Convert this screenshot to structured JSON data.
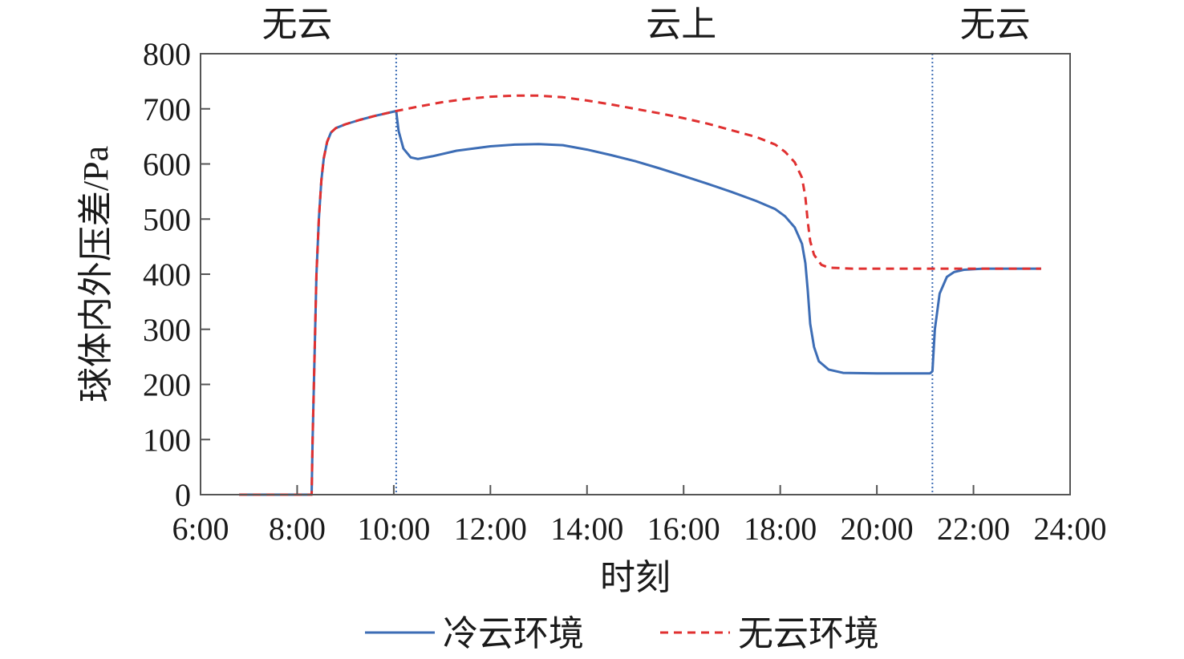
{
  "chart_data": {
    "type": "line",
    "xlabel": "时刻",
    "ylabel": "球体内外压差/Pa",
    "xlim": [
      6,
      24
    ],
    "ylim": [
      0,
      800
    ],
    "x_ticks": [
      {
        "value": 6,
        "label": "6:00"
      },
      {
        "value": 8,
        "label": "8:00"
      },
      {
        "value": 10,
        "label": "10:00"
      },
      {
        "value": 12,
        "label": "12:00"
      },
      {
        "value": 14,
        "label": "14:00"
      },
      {
        "value": 16,
        "label": "16:00"
      },
      {
        "value": 18,
        "label": "18:00"
      },
      {
        "value": 20,
        "label": "20:00"
      },
      {
        "value": 22,
        "label": "22:00"
      },
      {
        "value": 24,
        "label": "24:00"
      }
    ],
    "y_ticks": [
      {
        "value": 0,
        "label": "0"
      },
      {
        "value": 100,
        "label": "100"
      },
      {
        "value": 200,
        "label": "200"
      },
      {
        "value": 300,
        "label": "300"
      },
      {
        "value": 400,
        "label": "400"
      },
      {
        "value": 500,
        "label": "500"
      },
      {
        "value": 600,
        "label": "600"
      },
      {
        "value": 700,
        "label": "700"
      },
      {
        "value": 800,
        "label": "800"
      }
    ],
    "regions": [
      {
        "label": "无云",
        "center_x": 8.0
      },
      {
        "label": "云上",
        "center_x": 15.95
      },
      {
        "label": "无云",
        "center_x": 22.45
      }
    ],
    "boundaries": [
      10.05,
      21.15
    ],
    "grid": false,
    "legend": "bottom",
    "series": [
      {
        "name": "冷云环境",
        "color": "#3d6db5",
        "dash": "solid",
        "points": [
          [
            6.8,
            0
          ],
          [
            8.3,
            0
          ],
          [
            8.32,
            100
          ],
          [
            8.36,
            250
          ],
          [
            8.4,
            400
          ],
          [
            8.45,
            500
          ],
          [
            8.5,
            570
          ],
          [
            8.55,
            610
          ],
          [
            8.62,
            640
          ],
          [
            8.7,
            657
          ],
          [
            8.8,
            665
          ],
          [
            9.0,
            672
          ],
          [
            9.3,
            680
          ],
          [
            9.6,
            687
          ],
          [
            10.05,
            696
          ],
          [
            10.1,
            660
          ],
          [
            10.2,
            628
          ],
          [
            10.35,
            612
          ],
          [
            10.5,
            609
          ],
          [
            10.8,
            614
          ],
          [
            11.3,
            624
          ],
          [
            12.0,
            632
          ],
          [
            12.5,
            635
          ],
          [
            13.0,
            636
          ],
          [
            13.5,
            634
          ],
          [
            14.0,
            626
          ],
          [
            14.5,
            616
          ],
          [
            15.0,
            605
          ],
          [
            15.5,
            592
          ],
          [
            16.0,
            578
          ],
          [
            16.5,
            564
          ],
          [
            17.0,
            549
          ],
          [
            17.5,
            533
          ],
          [
            17.9,
            518
          ],
          [
            18.1,
            505
          ],
          [
            18.3,
            485
          ],
          [
            18.45,
            455
          ],
          [
            18.52,
            420
          ],
          [
            18.57,
            370
          ],
          [
            18.62,
            310
          ],
          [
            18.7,
            268
          ],
          [
            18.8,
            242
          ],
          [
            19.0,
            227
          ],
          [
            19.3,
            221
          ],
          [
            20.0,
            220
          ],
          [
            21.1,
            220
          ],
          [
            21.15,
            224
          ],
          [
            21.2,
            300
          ],
          [
            21.3,
            365
          ],
          [
            21.45,
            395
          ],
          [
            21.6,
            404
          ],
          [
            21.8,
            408
          ],
          [
            22.2,
            410
          ],
          [
            23.4,
            410
          ]
        ]
      },
      {
        "name": "无云环境",
        "color": "#e03030",
        "dash": "dashed",
        "points": [
          [
            6.8,
            0
          ],
          [
            8.3,
            0
          ],
          [
            8.32,
            100
          ],
          [
            8.36,
            250
          ],
          [
            8.4,
            400
          ],
          [
            8.45,
            500
          ],
          [
            8.5,
            570
          ],
          [
            8.55,
            610
          ],
          [
            8.62,
            640
          ],
          [
            8.7,
            657
          ],
          [
            8.8,
            665
          ],
          [
            9.0,
            672
          ],
          [
            9.3,
            680
          ],
          [
            9.6,
            687
          ],
          [
            10.05,
            696
          ],
          [
            10.5,
            704
          ],
          [
            11.0,
            712
          ],
          [
            11.5,
            718
          ],
          [
            12.0,
            722
          ],
          [
            12.5,
            724
          ],
          [
            13.0,
            724
          ],
          [
            13.5,
            721
          ],
          [
            14.0,
            715
          ],
          [
            14.5,
            708
          ],
          [
            15.0,
            700
          ],
          [
            15.5,
            692
          ],
          [
            16.0,
            683
          ],
          [
            16.5,
            673
          ],
          [
            17.0,
            661
          ],
          [
            17.5,
            649
          ],
          [
            17.9,
            635
          ],
          [
            18.1,
            622
          ],
          [
            18.3,
            603
          ],
          [
            18.45,
            575
          ],
          [
            18.52,
            540
          ],
          [
            18.57,
            495
          ],
          [
            18.62,
            460
          ],
          [
            18.7,
            435
          ],
          [
            18.85,
            417
          ],
          [
            19.0,
            412
          ],
          [
            19.5,
            410
          ],
          [
            21.15,
            410
          ],
          [
            22.2,
            410
          ],
          [
            23.4,
            410
          ]
        ]
      }
    ]
  }
}
